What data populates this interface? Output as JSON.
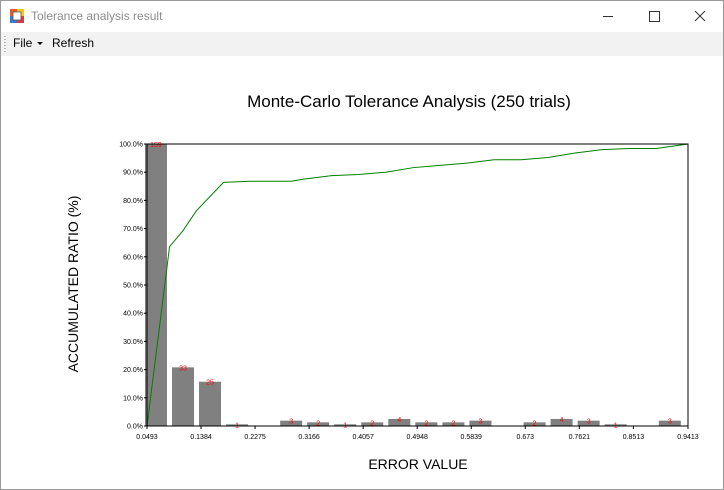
{
  "window": {
    "title": "Tolerance analysis result"
  },
  "menu": {
    "file_label": "File",
    "refresh_label": "Refresh"
  },
  "chart_data": {
    "type": "bar",
    "title": "Monte-Carlo Tolerance Analysis (250 trials)",
    "xlabel": "ERROR VALUE",
    "ylabel": "ACCUMULATED RATIO (%)",
    "x_ticks": [
      "0.0493",
      "0.1384",
      "0.2275",
      "0.3166",
      "0.4057",
      "0.4948",
      "0.5839",
      "0.673",
      "0.7621",
      "0.8513",
      "0.9413"
    ],
    "y_ticks": [
      "0.0%",
      "10.0%",
      "20.0%",
      "30.0%",
      "40.0%",
      "50.0%",
      "60.0%",
      "70.0%",
      "80.0%",
      "90.0%",
      "100.0%"
    ],
    "xlim": [
      0.0493,
      0.9413
    ],
    "ylim": [
      0,
      100
    ],
    "grid": false,
    "bar_color": "#808080",
    "line_color": "#008000",
    "label_color": "#ff0000",
    "bars": [
      {
        "x": 0.0641,
        "count": "159",
        "ratio": 100
      },
      {
        "x": 0.1087,
        "count": "33",
        "ratio": 20.8
      },
      {
        "x": 0.1532,
        "count": "25",
        "ratio": 15.7
      },
      {
        "x": 0.1978,
        "count": "1",
        "ratio": 0.6
      },
      {
        "x": 0.287,
        "count": "3",
        "ratio": 1.9
      },
      {
        "x": 0.3315,
        "count": "2",
        "ratio": 1.3
      },
      {
        "x": 0.3761,
        "count": "1",
        "ratio": 0.6
      },
      {
        "x": 0.4207,
        "count": "2",
        "ratio": 1.3
      },
      {
        "x": 0.4653,
        "count": "4",
        "ratio": 2.5
      },
      {
        "x": 0.5099,
        "count": "2",
        "ratio": 1.3
      },
      {
        "x": 0.5545,
        "count": "2",
        "ratio": 1.3
      },
      {
        "x": 0.5991,
        "count": "3",
        "ratio": 1.9
      },
      {
        "x": 0.6883,
        "count": "2",
        "ratio": 1.3
      },
      {
        "x": 0.7329,
        "count": "4",
        "ratio": 2.5
      },
      {
        "x": 0.7775,
        "count": "3",
        "ratio": 1.9
      },
      {
        "x": 0.8221,
        "count": "1",
        "ratio": 0.6
      },
      {
        "x": 0.9113,
        "count": "3",
        "ratio": 1.9
      }
    ],
    "cumulative_line": [
      [
        0.0493,
        0
      ],
      [
        0.0865,
        63.6
      ],
      [
        0.1087,
        69.3
      ],
      [
        0.131,
        76.4
      ],
      [
        0.1755,
        86.4
      ],
      [
        0.2201,
        86.8
      ],
      [
        0.2647,
        86.8
      ],
      [
        0.287,
        86.8
      ],
      [
        0.3093,
        87.6
      ],
      [
        0.3538,
        88.8
      ],
      [
        0.3984,
        89.2
      ],
      [
        0.443,
        90.0
      ],
      [
        0.4876,
        91.6
      ],
      [
        0.5322,
        92.4
      ],
      [
        0.5768,
        93.2
      ],
      [
        0.6214,
        94.4
      ],
      [
        0.666,
        94.4
      ],
      [
        0.7106,
        95.2
      ],
      [
        0.7552,
        96.8
      ],
      [
        0.7998,
        98.0
      ],
      [
        0.8444,
        98.4
      ],
      [
        0.889,
        98.4
      ],
      [
        0.9413,
        100
      ]
    ]
  }
}
